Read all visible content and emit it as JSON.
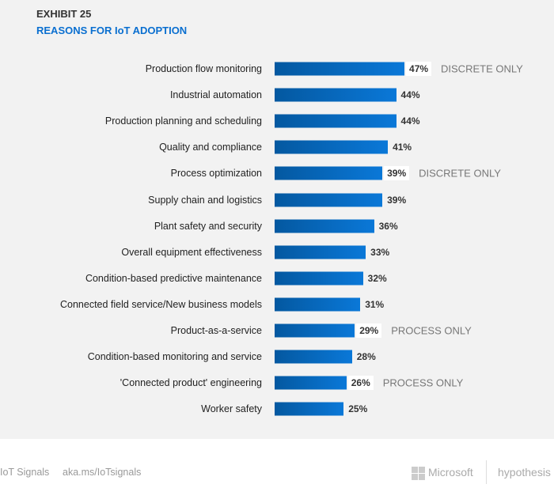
{
  "header": {
    "exhibit": "EXHIBIT 25",
    "title": "REASONS FOR IoT ADOPTION"
  },
  "chart_data": {
    "type": "bar",
    "orientation": "horizontal",
    "title": "REASONS FOR IoT ADOPTION",
    "categories": [
      "Production flow monitoring",
      "Industrial automation",
      "Production planning and scheduling",
      "Quality and compliance",
      "Process optimization",
      "Supply chain and logistics",
      "Plant safety and security",
      "Overall equipment effectiveness",
      "Condition-based predictive maintenance",
      "Connected field service/New business models",
      "Product-as-a-service",
      "Condition-based monitoring and service",
      "'Connected product' engineering",
      "Worker safety"
    ],
    "values": [
      47,
      44,
      44,
      41,
      39,
      39,
      36,
      33,
      32,
      31,
      29,
      28,
      26,
      25
    ],
    "value_labels": [
      "47%",
      "44%",
      "44%",
      "41%",
      "39%",
      "39%",
      "36%",
      "33%",
      "32%",
      "31%",
      "29%",
      "28%",
      "26%",
      "25%"
    ],
    "annotations": [
      "DISCRETE ONLY",
      "",
      "",
      "",
      "DISCRETE ONLY",
      "",
      "",
      "",
      "",
      "",
      "PROCESS ONLY",
      "",
      "PROCESS ONLY",
      ""
    ],
    "unit": "%",
    "xlim": [
      0,
      100
    ],
    "grid": false,
    "legend": "none"
  },
  "footer": {
    "brand": "IoT Signals",
    "link": "aka.ms/IoTsignals",
    "microsoft": "Microsoft",
    "hypothesis": "hypothesis"
  },
  "colors": {
    "bar_start": "#0458a0",
    "bar_end": "#0a78d8",
    "title": "#0a6fd0"
  }
}
